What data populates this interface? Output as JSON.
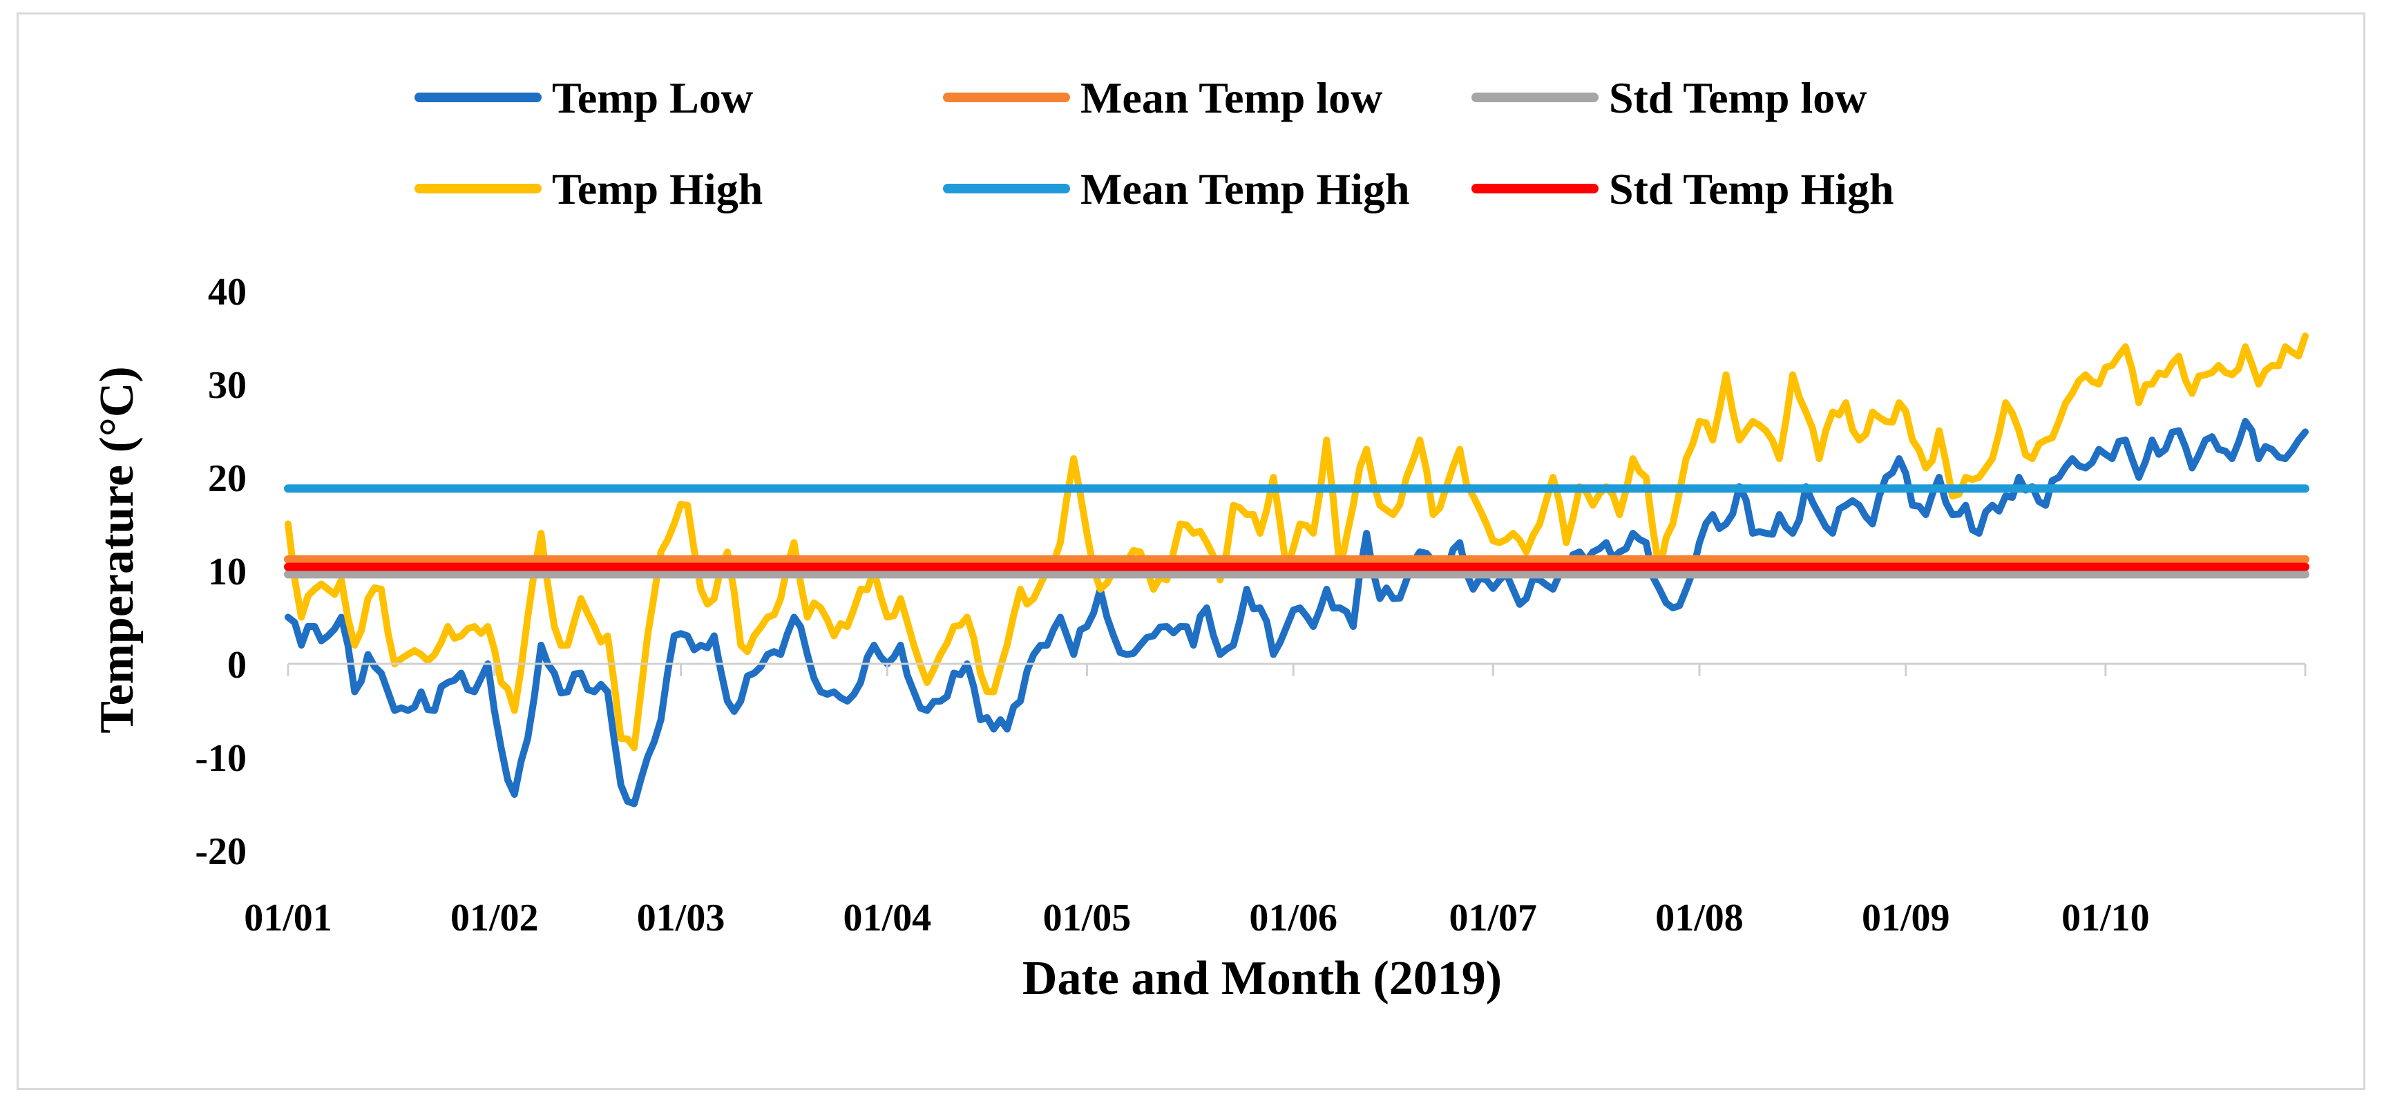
{
  "chart_data": {
    "type": "line",
    "title": "",
    "xlabel": "Date and Month (2019)",
    "ylabel": "Temperature (°C)",
    "ylim": [
      -20,
      40
    ],
    "yticks": [
      -20,
      -10,
      0,
      10,
      20,
      30,
      40
    ],
    "x_range_days": [
      0,
      303
    ],
    "month_ticks": [
      {
        "day": 0,
        "label": "01/01"
      },
      {
        "day": 31,
        "label": "01/02"
      },
      {
        "day": 59,
        "label": "01/03"
      },
      {
        "day": 90,
        "label": "01/04"
      },
      {
        "day": 120,
        "label": "01/05"
      },
      {
        "day": 151,
        "label": "01/06"
      },
      {
        "day": 181,
        "label": "01/07"
      },
      {
        "day": 212,
        "label": "01/08"
      },
      {
        "day": 243,
        "label": "01/09"
      },
      {
        "day": 273,
        "label": "01/10"
      }
    ],
    "legend_position": "top",
    "series": [
      {
        "name": "Temp Low",
        "color": "#1f6fc4",
        "kind": "daily",
        "keypoints": [
          [
            0,
            5
          ],
          [
            2,
            2
          ],
          [
            4,
            4
          ],
          [
            6,
            3
          ],
          [
            8,
            5
          ],
          [
            10,
            -3
          ],
          [
            12,
            1
          ],
          [
            14,
            -1
          ],
          [
            16,
            -5
          ],
          [
            18,
            -5
          ],
          [
            20,
            -3
          ],
          [
            22,
            -5
          ],
          [
            24,
            -2
          ],
          [
            26,
            -1
          ],
          [
            28,
            -3
          ],
          [
            30,
            0
          ],
          [
            32,
            -9
          ],
          [
            34,
            -14
          ],
          [
            36,
            -8
          ],
          [
            38,
            2
          ],
          [
            40,
            -1
          ],
          [
            42,
            -3
          ],
          [
            44,
            -1
          ],
          [
            46,
            -3
          ],
          [
            48,
            -3
          ],
          [
            50,
            -13
          ],
          [
            52,
            -15
          ],
          [
            54,
            -10
          ],
          [
            56,
            -6
          ],
          [
            58,
            3
          ],
          [
            60,
            3
          ],
          [
            62,
            2
          ],
          [
            64,
            3
          ],
          [
            66,
            -4
          ],
          [
            68,
            -4
          ],
          [
            70,
            -1
          ],
          [
            72,
            1
          ],
          [
            74,
            1
          ],
          [
            76,
            5
          ],
          [
            78,
            1
          ],
          [
            80,
            -3
          ],
          [
            82,
            -3
          ],
          [
            84,
            -4
          ],
          [
            86,
            -2
          ],
          [
            88,
            2
          ],
          [
            90,
            0
          ],
          [
            92,
            2
          ],
          [
            94,
            -3
          ],
          [
            96,
            -5
          ],
          [
            98,
            -4
          ],
          [
            100,
            -1
          ],
          [
            102,
            0
          ],
          [
            104,
            -6
          ],
          [
            106,
            -7
          ],
          [
            108,
            -7
          ],
          [
            110,
            -4
          ],
          [
            112,
            1
          ],
          [
            114,
            2
          ],
          [
            116,
            5
          ],
          [
            118,
            1
          ],
          [
            120,
            4
          ],
          [
            122,
            8
          ],
          [
            124,
            3
          ],
          [
            126,
            1
          ],
          [
            128,
            2
          ],
          [
            130,
            3
          ],
          [
            132,
            4
          ],
          [
            134,
            4
          ],
          [
            136,
            2
          ],
          [
            138,
            6
          ],
          [
            140,
            1
          ],
          [
            142,
            2
          ],
          [
            144,
            8
          ],
          [
            146,
            6
          ],
          [
            148,
            1
          ],
          [
            150,
            4
          ],
          [
            152,
            6
          ],
          [
            154,
            4
          ],
          [
            156,
            8
          ],
          [
            158,
            6
          ],
          [
            160,
            4
          ],
          [
            162,
            14
          ],
          [
            164,
            7
          ],
          [
            166,
            7
          ],
          [
            168,
            9
          ],
          [
            170,
            12
          ],
          [
            172,
            11
          ],
          [
            174,
            10
          ],
          [
            176,
            13
          ],
          [
            178,
            8
          ],
          [
            180,
            9
          ],
          [
            182,
            9
          ],
          [
            184,
            8
          ],
          [
            186,
            7
          ],
          [
            188,
            9
          ],
          [
            190,
            8
          ],
          [
            192,
            10
          ],
          [
            194,
            12
          ],
          [
            196,
            12
          ],
          [
            198,
            13
          ],
          [
            200,
            12
          ],
          [
            202,
            14
          ],
          [
            204,
            13
          ],
          [
            206,
            8
          ],
          [
            208,
            6
          ],
          [
            210,
            8
          ],
          [
            212,
            13
          ],
          [
            214,
            16
          ],
          [
            216,
            15
          ],
          [
            218,
            19
          ],
          [
            220,
            14
          ],
          [
            222,
            14
          ],
          [
            224,
            16
          ],
          [
            226,
            14
          ],
          [
            228,
            19
          ],
          [
            230,
            16
          ],
          [
            232,
            14
          ],
          [
            234,
            17
          ],
          [
            236,
            17
          ],
          [
            238,
            15
          ],
          [
            240,
            20
          ],
          [
            242,
            22
          ],
          [
            244,
            17
          ],
          [
            246,
            16
          ],
          [
            248,
            20
          ],
          [
            250,
            16
          ],
          [
            252,
            17
          ],
          [
            254,
            14
          ],
          [
            256,
            17
          ],
          [
            258,
            18
          ],
          [
            260,
            20
          ],
          [
            262,
            19
          ],
          [
            264,
            17
          ],
          [
            266,
            20
          ],
          [
            268,
            22
          ],
          [
            270,
            21
          ],
          [
            272,
            23
          ],
          [
            274,
            22
          ],
          [
            276,
            24
          ],
          [
            278,
            20
          ],
          [
            280,
            24
          ],
          [
            282,
            23
          ],
          [
            284,
            25
          ],
          [
            286,
            21
          ],
          [
            288,
            24
          ],
          [
            290,
            23
          ],
          [
            292,
            22
          ],
          [
            294,
            26
          ],
          [
            296,
            22
          ],
          [
            298,
            23
          ],
          [
            300,
            22
          ],
          [
            302,
            24
          ],
          [
            304,
            25
          ]
        ]
      },
      {
        "name": "Temp High",
        "color": "#ffc000",
        "kind": "daily",
        "keypoints": [
          [
            0,
            15
          ],
          [
            2,
            5
          ],
          [
            4,
            8
          ],
          [
            6,
            8
          ],
          [
            8,
            9
          ],
          [
            10,
            2
          ],
          [
            12,
            7
          ],
          [
            14,
            8
          ],
          [
            16,
            0
          ],
          [
            18,
            1
          ],
          [
            20,
            1
          ],
          [
            22,
            1
          ],
          [
            24,
            4
          ],
          [
            26,
            3
          ],
          [
            28,
            4
          ],
          [
            30,
            4
          ],
          [
            32,
            -2
          ],
          [
            34,
            -5
          ],
          [
            36,
            5
          ],
          [
            38,
            14
          ],
          [
            40,
            4
          ],
          [
            42,
            2
          ],
          [
            44,
            7
          ],
          [
            46,
            4
          ],
          [
            48,
            3
          ],
          [
            50,
            -8
          ],
          [
            52,
            -9
          ],
          [
            54,
            3
          ],
          [
            56,
            12
          ],
          [
            58,
            15
          ],
          [
            60,
            17
          ],
          [
            62,
            8
          ],
          [
            64,
            7
          ],
          [
            66,
            12
          ],
          [
            68,
            2
          ],
          [
            70,
            3
          ],
          [
            72,
            5
          ],
          [
            74,
            7
          ],
          [
            76,
            13
          ],
          [
            78,
            5
          ],
          [
            80,
            6
          ],
          [
            82,
            3
          ],
          [
            84,
            4
          ],
          [
            86,
            8
          ],
          [
            88,
            10
          ],
          [
            90,
            5
          ],
          [
            92,
            7
          ],
          [
            94,
            2
          ],
          [
            96,
            -2
          ],
          [
            98,
            1
          ],
          [
            100,
            4
          ],
          [
            102,
            5
          ],
          [
            104,
            -1
          ],
          [
            106,
            -3
          ],
          [
            108,
            2
          ],
          [
            110,
            8
          ],
          [
            112,
            7
          ],
          [
            114,
            10
          ],
          [
            116,
            13
          ],
          [
            118,
            22
          ],
          [
            120,
            14
          ],
          [
            122,
            8
          ],
          [
            124,
            10
          ],
          [
            126,
            11
          ],
          [
            128,
            12
          ],
          [
            130,
            8
          ],
          [
            132,
            9
          ],
          [
            134,
            15
          ],
          [
            136,
            14
          ],
          [
            138,
            13
          ],
          [
            140,
            9
          ],
          [
            142,
            17
          ],
          [
            144,
            16
          ],
          [
            146,
            14
          ],
          [
            148,
            20
          ],
          [
            150,
            10
          ],
          [
            152,
            15
          ],
          [
            154,
            14
          ],
          [
            156,
            24
          ],
          [
            158,
            10
          ],
          [
            160,
            17
          ],
          [
            162,
            23
          ],
          [
            164,
            17
          ],
          [
            166,
            16
          ],
          [
            168,
            20
          ],
          [
            170,
            24
          ],
          [
            172,
            16
          ],
          [
            174,
            19
          ],
          [
            176,
            23
          ],
          [
            178,
            18
          ],
          [
            180,
            15
          ],
          [
            182,
            13
          ],
          [
            184,
            14
          ],
          [
            186,
            12
          ],
          [
            188,
            15
          ],
          [
            190,
            20
          ],
          [
            192,
            13
          ],
          [
            194,
            19
          ],
          [
            196,
            17
          ],
          [
            198,
            19
          ],
          [
            200,
            16
          ],
          [
            202,
            22
          ],
          [
            204,
            20
          ],
          [
            206,
            10
          ],
          [
            208,
            15
          ],
          [
            210,
            22
          ],
          [
            212,
            26
          ],
          [
            214,
            24
          ],
          [
            216,
            31
          ],
          [
            218,
            24
          ],
          [
            220,
            26
          ],
          [
            222,
            25
          ],
          [
            224,
            22
          ],
          [
            226,
            31
          ],
          [
            228,
            27
          ],
          [
            230,
            22
          ],
          [
            232,
            27
          ],
          [
            234,
            28
          ],
          [
            236,
            24
          ],
          [
            238,
            27
          ],
          [
            240,
            26
          ],
          [
            242,
            28
          ],
          [
            244,
            24
          ],
          [
            246,
            21
          ],
          [
            248,
            25
          ],
          [
            250,
            18
          ],
          [
            252,
            20
          ],
          [
            254,
            20
          ],
          [
            256,
            22
          ],
          [
            258,
            28
          ],
          [
            260,
            25
          ],
          [
            262,
            22
          ],
          [
            264,
            24
          ],
          [
            266,
            26
          ],
          [
            268,
            29
          ],
          [
            270,
            31
          ],
          [
            272,
            30
          ],
          [
            274,
            32
          ],
          [
            276,
            34
          ],
          [
            278,
            28
          ],
          [
            280,
            30
          ],
          [
            282,
            31
          ],
          [
            284,
            33
          ],
          [
            286,
            29
          ],
          [
            288,
            31
          ],
          [
            290,
            32
          ],
          [
            292,
            31
          ],
          [
            294,
            34
          ],
          [
            296,
            30
          ],
          [
            298,
            32
          ],
          [
            300,
            34
          ],
          [
            302,
            33
          ],
          [
            304,
            37
          ]
        ]
      },
      {
        "name": "Mean Temp low",
        "color": "#f58231",
        "kind": "constant",
        "value": 11.2
      },
      {
        "name": "Mean Temp High",
        "color": "#1f9ad8",
        "kind": "constant",
        "value": 18.8
      },
      {
        "name": "Std Temp low",
        "color": "#a6a6a6",
        "kind": "constant",
        "value": 9.6
      },
      {
        "name": "Std Temp High",
        "color": "#ff0000",
        "kind": "constant",
        "value": 10.4
      }
    ]
  }
}
